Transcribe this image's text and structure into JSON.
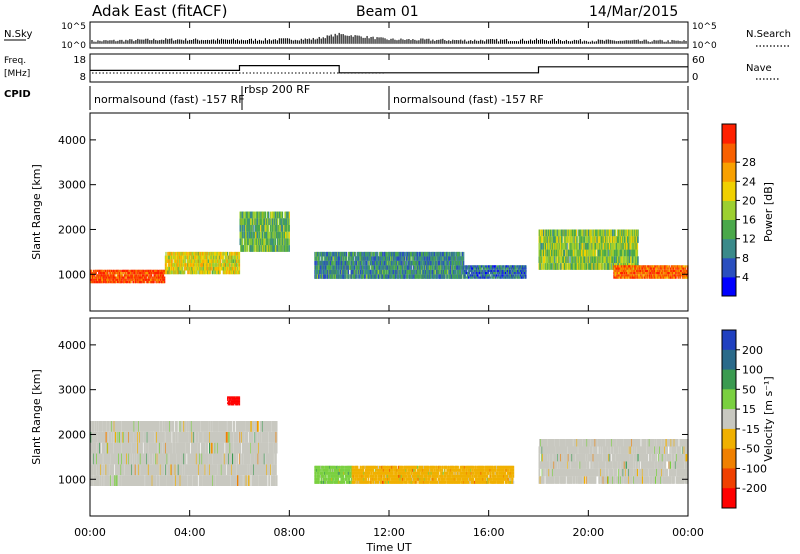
{
  "header": {
    "radar": "Adak East (fitACF)",
    "beam": "Beam 01",
    "date": "14/Mar/2015"
  },
  "panels": {
    "nsky": {
      "label": "N.Sky",
      "ticks": [
        "10^5",
        "10^0"
      ],
      "right_ticks": [
        "10^5",
        "10^0"
      ],
      "right_label": "N.Search"
    },
    "freq": {
      "label_top": "Freq.",
      "label_unit": "[MHz]",
      "ticks": [
        "18",
        "8"
      ],
      "right_ticks": [
        "60",
        "0"
      ],
      "right_label": "Nave"
    },
    "cpid": {
      "label": "CPID",
      "segments": [
        {
          "text": "normalsound (fast) -157 RF",
          "start_hour": 0
        },
        {
          "text": "rbsp 200 RF",
          "start_hour": 6
        },
        {
          "text": "normalsound (fast) -157 RF",
          "start_hour": 12
        }
      ]
    }
  },
  "axes": {
    "x_label": "Time UT",
    "x_ticks": [
      "00:00",
      "04:00",
      "08:00",
      "12:00",
      "16:00",
      "20:00",
      "00:00"
    ],
    "y_label": "Slant Range [km]",
    "y_ticks": [
      "1000",
      "2000",
      "3000",
      "4000"
    ]
  },
  "colorbars": {
    "power": {
      "label": "Power [dB]",
      "ticks": [
        "4",
        "8",
        "12",
        "16",
        "20",
        "24",
        "28"
      ],
      "colors": [
        "#0000ff",
        "#2a4fbf",
        "#3a8a8a",
        "#4aa84a",
        "#9ccf30",
        "#f0d000",
        "#f8a000",
        "#f86000",
        "#ff2000"
      ]
    },
    "velocity": {
      "label": "Velocity [m s⁻¹]",
      "ticks": [
        "200",
        "100",
        "50",
        "15",
        "-15",
        "-50",
        "-100",
        "-200"
      ],
      "colors": [
        "#2040c0",
        "#2a6a8a",
        "#3a9a50",
        "#7ad040",
        "#c8c8c0",
        "#f0b000",
        "#f08000",
        "#f04000",
        "#ff0000"
      ]
    }
  },
  "chart_data": [
    {
      "type": "line",
      "name": "N.Sky",
      "x_hours": [
        0,
        3,
        6,
        9,
        10,
        12,
        15,
        18,
        21,
        24
      ],
      "y_log10": [
        0.8,
        1.2,
        1.1,
        1.3,
        2.4,
        1.2,
        1.0,
        1.1,
        0.9,
        0.8
      ]
    },
    {
      "type": "line",
      "name": "Freq.",
      "x_hours": [
        0,
        6,
        6,
        10,
        10,
        18,
        18,
        24
      ],
      "y_mhz": [
        12,
        12,
        14,
        14,
        11,
        11,
        13.5,
        13.5
      ]
    },
    {
      "type": "heatmap",
      "title": "Power [dB]",
      "xlabel": "Time UT",
      "ylabel": "Slant Range [km]",
      "xlim_hours": [
        0,
        24
      ],
      "ylim_km": [
        180,
        4600
      ],
      "zlim": [
        0,
        30
      ],
      "regions": [
        {
          "hours": [
            0,
            3
          ],
          "range_km": [
            800,
            1100
          ],
          "power": 28
        },
        {
          "hours": [
            3,
            6
          ],
          "range_km": [
            1000,
            1500
          ],
          "power": 18
        },
        {
          "hours": [
            6,
            8
          ],
          "range_km": [
            1500,
            2400
          ],
          "power": 12
        },
        {
          "hours": [
            9,
            15
          ],
          "range_km": [
            900,
            1500
          ],
          "power": 8
        },
        {
          "hours": [
            15,
            17.5
          ],
          "range_km": [
            900,
            1200
          ],
          "power": 6
        },
        {
          "hours": [
            18,
            22
          ],
          "range_km": [
            1100,
            2000
          ],
          "power": 14
        },
        {
          "hours": [
            21,
            24
          ],
          "range_km": [
            900,
            1200
          ],
          "power": 26
        }
      ]
    },
    {
      "type": "heatmap",
      "title": "Velocity [m s-1]",
      "xlabel": "Time UT",
      "ylabel": "Slant Range [km]",
      "xlim_hours": [
        0,
        24
      ],
      "ylim_km": [
        180,
        4600
      ],
      "zlim": [
        -200,
        200
      ],
      "regions": [
        {
          "hours": [
            0,
            7.5
          ],
          "range_km": [
            850,
            2300
          ],
          "velocity": 0
        },
        {
          "hours": [
            9,
            10.5
          ],
          "range_km": [
            900,
            1300
          ],
          "velocity": 40
        },
        {
          "hours": [
            10.5,
            17
          ],
          "range_km": [
            900,
            1300
          ],
          "velocity": -20
        },
        {
          "hours": [
            18,
            24
          ],
          "range_km": [
            900,
            1900
          ],
          "velocity": 0
        },
        {
          "hours": [
            5.5,
            6
          ],
          "range_km": [
            2650,
            2850
          ],
          "velocity": -200
        }
      ]
    }
  ]
}
